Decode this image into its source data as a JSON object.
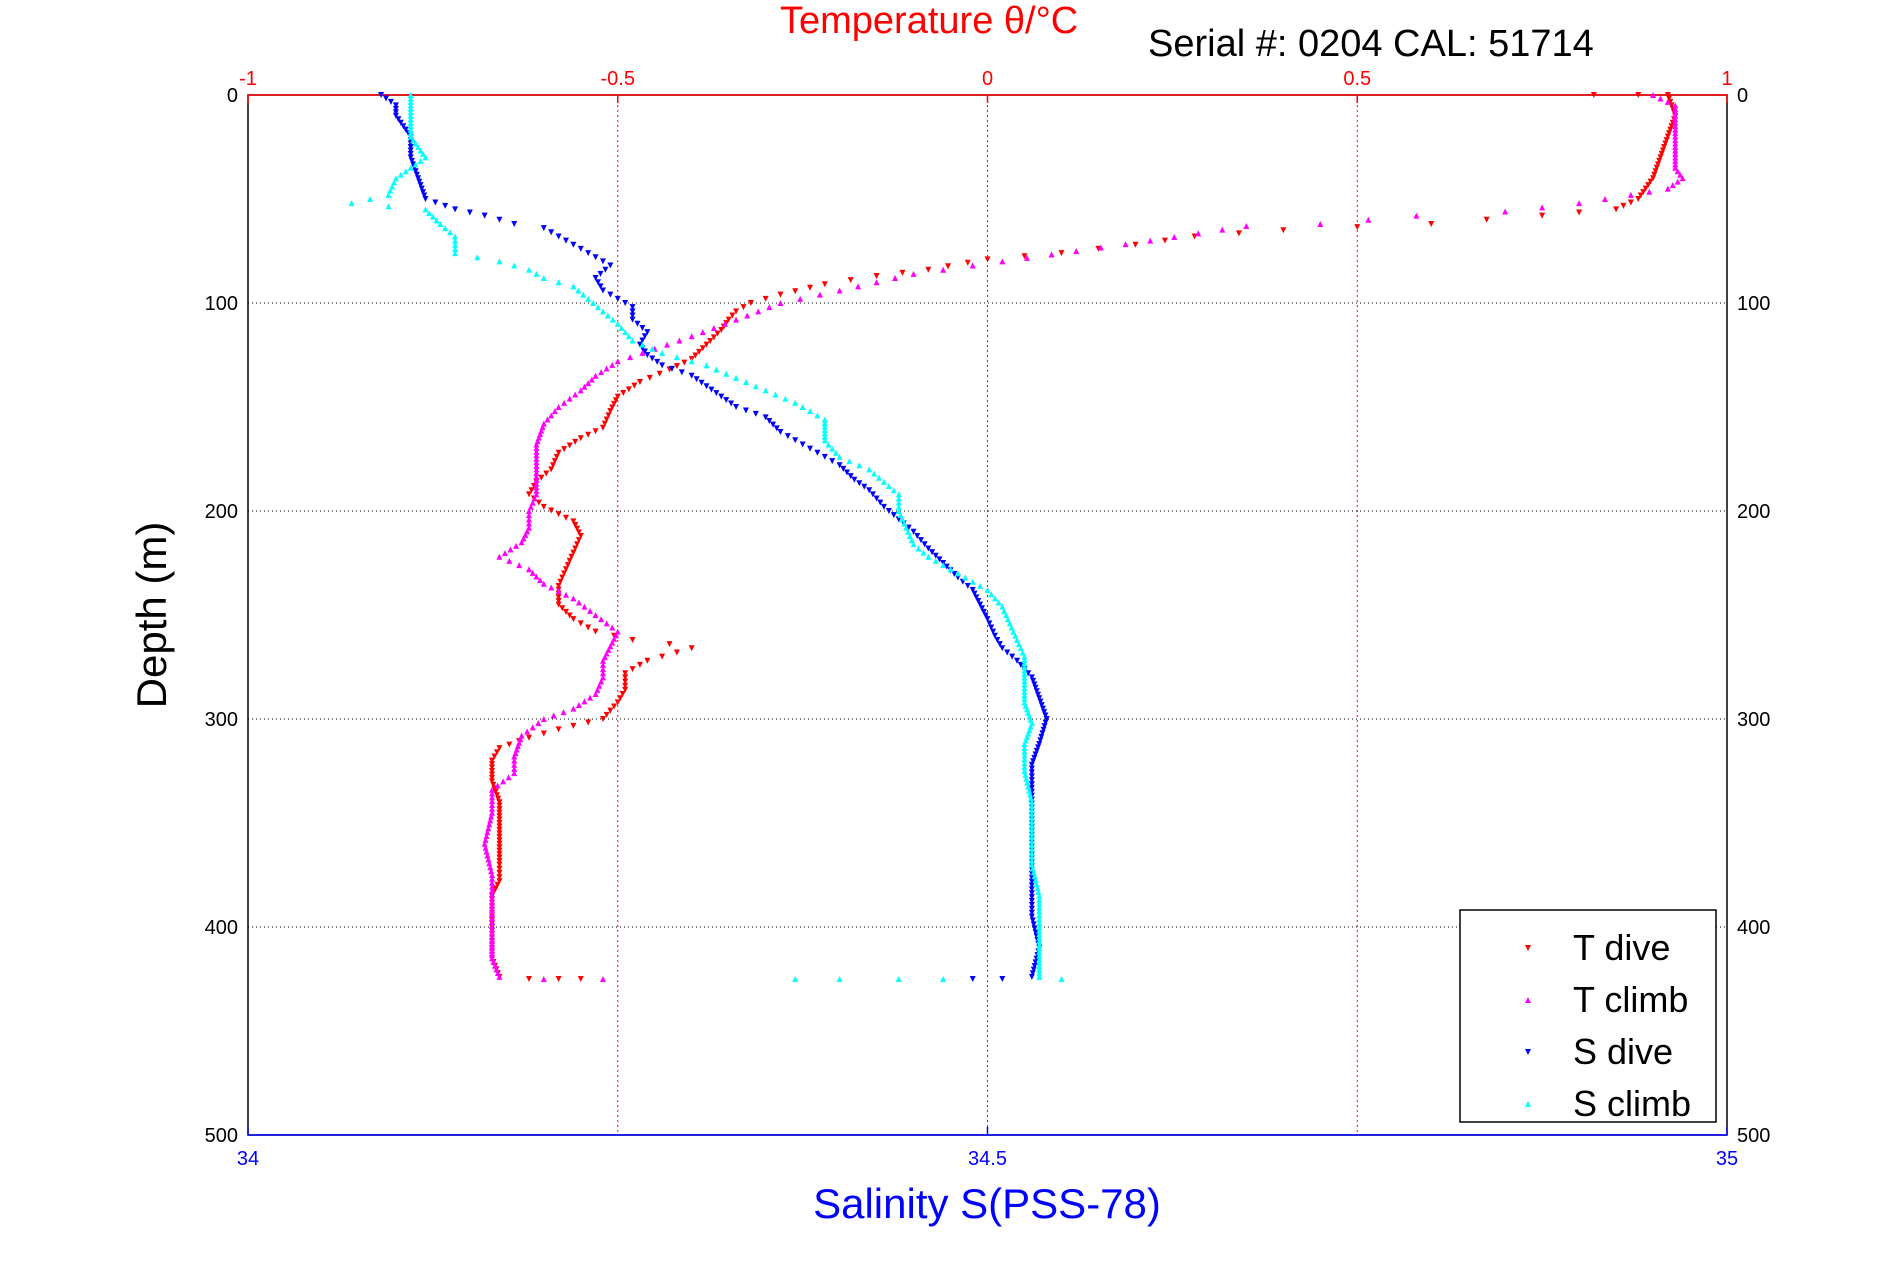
{
  "chart_data": {
    "type": "scatter",
    "title": "Temperature θ/°C",
    "subtitle": "Serial #: 0204  CAL: 51714",
    "xlabel": "Salinity S(PSS-78)",
    "ylabel": "Depth (m)",
    "temperature_axis": {
      "range": [
        -1,
        1
      ],
      "ticks": [
        -1,
        -0.5,
        0,
        0.5,
        1
      ],
      "tick_labels": [
        "-1",
        "-0.5",
        "0",
        "0.5",
        "1"
      ],
      "color": "#ff0000",
      "position": "top"
    },
    "salinity_axis": {
      "range": [
        34,
        35
      ],
      "ticks": [
        34,
        34.5,
        35
      ],
      "tick_labels": [
        "34",
        "34.5",
        "35"
      ],
      "color": "#0000ff",
      "position": "bottom"
    },
    "depth_axis": {
      "range": [
        0,
        500
      ],
      "reversed": true,
      "ticks": [
        0,
        100,
        200,
        300,
        400,
        500
      ],
      "tick_labels": [
        "0",
        "100",
        "200",
        "300",
        "400",
        "500"
      ]
    },
    "grid": true,
    "legend": "bottom-right",
    "series": [
      {
        "name": "T dive",
        "axis": "temperature",
        "color": "#ff0000",
        "marker": "triangle-down",
        "points": [
          [
            0.82,
            0
          ],
          [
            0.88,
            0
          ],
          [
            0.92,
            0
          ],
          [
            0.93,
            10
          ],
          [
            0.92,
            20
          ],
          [
            0.91,
            30
          ],
          [
            0.9,
            40
          ],
          [
            0.88,
            50
          ],
          [
            0.85,
            55
          ],
          [
            0.75,
            58
          ],
          [
            0.6,
            62
          ],
          [
            0.4,
            65
          ],
          [
            0.28,
            68
          ],
          [
            0.2,
            72
          ],
          [
            0.1,
            76
          ],
          [
            0.0,
            79
          ],
          [
            -0.08,
            84
          ],
          [
            -0.15,
            87
          ],
          [
            -0.22,
            91
          ],
          [
            -0.28,
            96
          ],
          [
            -0.32,
            100
          ],
          [
            -0.34,
            104
          ],
          [
            -0.35,
            108
          ],
          [
            -0.36,
            113
          ],
          [
            -0.38,
            120
          ],
          [
            -0.4,
            127
          ],
          [
            -0.43,
            132
          ],
          [
            -0.47,
            138
          ],
          [
            -0.5,
            145
          ],
          [
            -0.51,
            152
          ],
          [
            -0.52,
            160
          ],
          [
            -0.55,
            165
          ],
          [
            -0.58,
            172
          ],
          [
            -0.59,
            180
          ],
          [
            -0.61,
            186
          ],
          [
            -0.62,
            192
          ],
          [
            -0.6,
            198
          ],
          [
            -0.56,
            205
          ],
          [
            -0.55,
            212
          ],
          [
            -0.56,
            220
          ],
          [
            -0.57,
            228
          ],
          [
            -0.58,
            236
          ],
          [
            -0.58,
            245
          ],
          [
            -0.56,
            252
          ],
          [
            -0.53,
            258
          ],
          [
            -0.48,
            262
          ],
          [
            -0.43,
            264
          ],
          [
            -0.4,
            266
          ],
          [
            -0.46,
            272
          ],
          [
            -0.49,
            278
          ],
          [
            -0.49,
            286
          ],
          [
            -0.5,
            292
          ],
          [
            -0.52,
            300
          ],
          [
            -0.58,
            305
          ],
          [
            -0.62,
            309
          ],
          [
            -0.66,
            314
          ],
          [
            -0.67,
            320
          ],
          [
            -0.67,
            330
          ],
          [
            -0.66,
            340
          ],
          [
            -0.66,
            350
          ],
          [
            -0.66,
            360
          ],
          [
            -0.66,
            370
          ],
          [
            -0.66,
            378
          ],
          [
            -0.67,
            385
          ],
          [
            -0.67,
            395
          ],
          [
            -0.67,
            405
          ],
          [
            -0.67,
            415
          ],
          [
            -0.66,
            424
          ],
          [
            -0.62,
            425
          ],
          [
            -0.58,
            425
          ],
          [
            -0.55,
            425
          ]
        ]
      },
      {
        "name": "T climb",
        "axis": "temperature",
        "color": "#ff00ff",
        "marker": "triangle-up",
        "points": [
          [
            0.9,
            0
          ],
          [
            0.93,
            5
          ],
          [
            0.93,
            15
          ],
          [
            0.93,
            25
          ],
          [
            0.93,
            35
          ],
          [
            0.94,
            40
          ],
          [
            0.92,
            45
          ],
          [
            0.87,
            48
          ],
          [
            0.8,
            52
          ],
          [
            0.7,
            56
          ],
          [
            0.58,
            58
          ],
          [
            0.45,
            62
          ],
          [
            0.35,
            63
          ],
          [
            0.22,
            70
          ],
          [
            0.12,
            75
          ],
          [
            0.02,
            80
          ],
          [
            -0.1,
            86
          ],
          [
            -0.2,
            94
          ],
          [
            -0.28,
            100
          ],
          [
            -0.34,
            108
          ],
          [
            -0.4,
            116
          ],
          [
            -0.45,
            122
          ],
          [
            -0.5,
            128
          ],
          [
            -0.53,
            135
          ],
          [
            -0.55,
            142
          ],
          [
            -0.58,
            150
          ],
          [
            -0.6,
            158
          ],
          [
            -0.61,
            168
          ],
          [
            -0.61,
            180
          ],
          [
            -0.61,
            192
          ],
          [
            -0.62,
            200
          ],
          [
            -0.62,
            208
          ],
          [
            -0.63,
            215
          ],
          [
            -0.66,
            222
          ],
          [
            -0.62,
            228
          ],
          [
            -0.6,
            235
          ],
          [
            -0.56,
            242
          ],
          [
            -0.53,
            250
          ],
          [
            -0.5,
            258
          ],
          [
            -0.51,
            265
          ],
          [
            -0.52,
            272
          ],
          [
            -0.52,
            280
          ],
          [
            -0.53,
            288
          ],
          [
            -0.56,
            295
          ],
          [
            -0.6,
            300
          ],
          [
            -0.63,
            308
          ],
          [
            -0.64,
            318
          ],
          [
            -0.64,
            326
          ],
          [
            -0.67,
            334
          ],
          [
            -0.67,
            345
          ],
          [
            -0.68,
            360
          ],
          [
            -0.67,
            375
          ],
          [
            -0.67,
            390
          ],
          [
            -0.67,
            405
          ],
          [
            -0.67,
            415
          ],
          [
            -0.66,
            424
          ],
          [
            -0.6,
            425
          ],
          [
            -0.52,
            425
          ]
        ]
      },
      {
        "name": "S dive",
        "axis": "salinity",
        "color": "#0000ff",
        "marker": "triangle-down",
        "points": [
          [
            34.09,
            0
          ],
          [
            34.1,
            5
          ],
          [
            34.1,
            10
          ],
          [
            34.11,
            20
          ],
          [
            34.11,
            30
          ],
          [
            34.115,
            40
          ],
          [
            34.12,
            50
          ],
          [
            34.14,
            55
          ],
          [
            34.16,
            58
          ],
          [
            34.18,
            62
          ],
          [
            34.2,
            64
          ],
          [
            34.21,
            68
          ],
          [
            34.22,
            72
          ],
          [
            34.23,
            76
          ],
          [
            34.245,
            82
          ],
          [
            34.235,
            88
          ],
          [
            34.24,
            94
          ],
          [
            34.25,
            98
          ],
          [
            34.26,
            102
          ],
          [
            34.26,
            108
          ],
          [
            34.27,
            114
          ],
          [
            34.265,
            120
          ],
          [
            34.27,
            125
          ],
          [
            34.28,
            130
          ],
          [
            34.3,
            135
          ],
          [
            34.31,
            140
          ],
          [
            34.32,
            145
          ],
          [
            34.33,
            150
          ],
          [
            34.35,
            155
          ],
          [
            34.36,
            162
          ],
          [
            34.38,
            170
          ],
          [
            34.4,
            178
          ],
          [
            34.41,
            185
          ],
          [
            34.42,
            190
          ],
          [
            34.43,
            198
          ],
          [
            34.44,
            204
          ],
          [
            34.45,
            210
          ],
          [
            34.46,
            218
          ],
          [
            34.47,
            225
          ],
          [
            34.48,
            232
          ],
          [
            34.49,
            238
          ],
          [
            34.495,
            245
          ],
          [
            34.5,
            252
          ],
          [
            34.505,
            260
          ],
          [
            34.51,
            266
          ],
          [
            34.52,
            272
          ],
          [
            34.53,
            280
          ],
          [
            34.535,
            290
          ],
          [
            34.54,
            300
          ],
          [
            34.535,
            312
          ],
          [
            34.53,
            322
          ],
          [
            34.53,
            335
          ],
          [
            34.53,
            350
          ],
          [
            34.53,
            365
          ],
          [
            34.53,
            380
          ],
          [
            34.53,
            395
          ],
          [
            34.535,
            410
          ],
          [
            34.53,
            424
          ],
          [
            34.49,
            425
          ],
          [
            34.51,
            425
          ]
        ]
      },
      {
        "name": "S climb",
        "axis": "salinity",
        "color": "#00ffff",
        "marker": "triangle-up",
        "points": [
          [
            34.11,
            0
          ],
          [
            34.11,
            10
          ],
          [
            34.11,
            20
          ],
          [
            34.12,
            30
          ],
          [
            34.1,
            40
          ],
          [
            34.095,
            48
          ],
          [
            34.07,
            52
          ],
          [
            34.12,
            55
          ],
          [
            34.13,
            62
          ],
          [
            34.14,
            68
          ],
          [
            34.14,
            76
          ],
          [
            34.17,
            80
          ],
          [
            34.19,
            84
          ],
          [
            34.2,
            88
          ],
          [
            34.22,
            92
          ],
          [
            34.23,
            98
          ],
          [
            34.24,
            104
          ],
          [
            34.25,
            110
          ],
          [
            34.26,
            118
          ],
          [
            34.28,
            124
          ],
          [
            34.31,
            130
          ],
          [
            34.33,
            136
          ],
          [
            34.35,
            142
          ],
          [
            34.37,
            148
          ],
          [
            34.39,
            156
          ],
          [
            34.39,
            166
          ],
          [
            34.4,
            174
          ],
          [
            34.42,
            180
          ],
          [
            34.43,
            186
          ],
          [
            34.44,
            192
          ],
          [
            34.44,
            200
          ],
          [
            34.445,
            208
          ],
          [
            34.45,
            216
          ],
          [
            34.46,
            222
          ],
          [
            34.48,
            230
          ],
          [
            34.5,
            238
          ],
          [
            34.51,
            246
          ],
          [
            34.515,
            254
          ],
          [
            34.52,
            262
          ],
          [
            34.525,
            270
          ],
          [
            34.525,
            280
          ],
          [
            34.525,
            292
          ],
          [
            34.53,
            302
          ],
          [
            34.525,
            312
          ],
          [
            34.525,
            325
          ],
          [
            34.53,
            340
          ],
          [
            34.53,
            355
          ],
          [
            34.53,
            370
          ],
          [
            34.535,
            385
          ],
          [
            34.535,
            400
          ],
          [
            34.535,
            412
          ],
          [
            34.535,
            424
          ],
          [
            34.37,
            425
          ],
          [
            34.4,
            425
          ],
          [
            34.44,
            425
          ],
          [
            34.47,
            425
          ],
          [
            34.55,
            425
          ]
        ]
      }
    ]
  }
}
